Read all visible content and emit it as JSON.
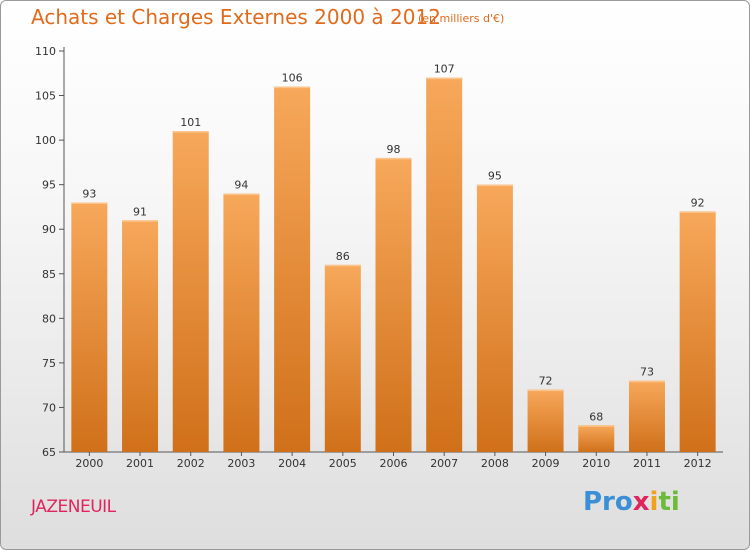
{
  "chart_data": {
    "type": "bar",
    "title": "Achats et Charges Externes 2000 à 2012",
    "subtitle": "(en milliers d'€)",
    "categories": [
      "2000",
      "2001",
      "2002",
      "2003",
      "2004",
      "2005",
      "2006",
      "2007",
      "2008",
      "2009",
      "2010",
      "2011",
      "2012"
    ],
    "values": [
      93,
      91,
      101,
      94,
      106,
      86,
      98,
      107,
      95,
      72,
      68,
      73,
      92
    ],
    "ylim": [
      65,
      110
    ],
    "yticks": [
      65,
      70,
      75,
      80,
      85,
      90,
      95,
      100,
      105,
      110
    ],
    "xlabel": "",
    "ylabel": "",
    "grid": false,
    "colors": {
      "bar_top": "#f7a85a",
      "bar_bottom": "#d0701a",
      "text_accent": "#e16b1c"
    }
  },
  "location": "JAZENEUIL",
  "brand": {
    "parts": [
      "Pro",
      "x",
      "i",
      "ti"
    ]
  }
}
